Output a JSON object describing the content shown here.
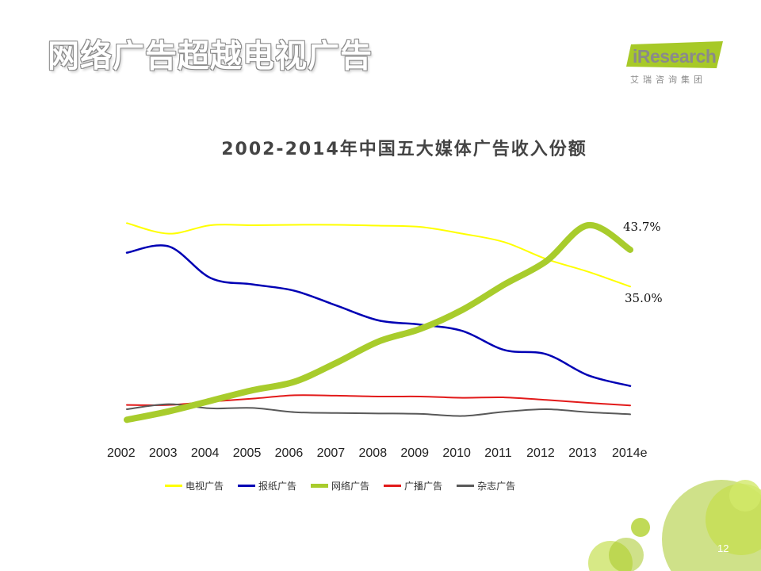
{
  "slide": {
    "title": "网络广告超越电视广告",
    "page_number": "12"
  },
  "logo": {
    "brand": "iResearch",
    "subtitle": "艾瑞咨询集团",
    "color": "#a7c928"
  },
  "chart_data": {
    "type": "line",
    "title": "2002-2014年中国五大媒体广告收入份额",
    "categories": [
      "2002",
      "2003",
      "2004",
      "2005",
      "2006",
      "2007",
      "2008",
      "2009",
      "2010",
      "2011",
      "2012",
      "2013",
      "2014e"
    ],
    "ylabel": "",
    "xlabel": "",
    "ylim": [
      0,
      60
    ],
    "legend_position": "bottom",
    "grid": false,
    "annotations": [
      {
        "label": "43.7%",
        "series": "网络广告"
      },
      {
        "label": "35.0%",
        "series": "电视广告"
      }
    ],
    "series": [
      {
        "name": "电视广告",
        "color": "#ffff00",
        "values": [
          50.0,
          47.5,
          49.5,
          49.5,
          49.6,
          49.6,
          49.4,
          49.1,
          47.5,
          45.5,
          41.5,
          38.5,
          35.0
        ]
      },
      {
        "name": "报纸广告",
        "color": "#0000b4",
        "values": [
          43.0,
          44.5,
          37.0,
          35.5,
          34.0,
          30.5,
          27.0,
          26.0,
          24.5,
          20.0,
          19.0,
          14.0,
          11.5
        ]
      },
      {
        "name": "网络广告",
        "color": "#a8cc2c",
        "values": [
          3.5,
          5.5,
          8.0,
          10.5,
          12.5,
          17.0,
          22.0,
          25.0,
          29.5,
          35.5,
          41.0,
          49.5,
          43.7
        ]
      },
      {
        "name": "广播广告",
        "color": "#e21a1a",
        "values": [
          7.0,
          7.0,
          7.8,
          8.5,
          9.3,
          9.2,
          9.0,
          9.0,
          8.7,
          8.8,
          8.2,
          7.5,
          6.9
        ]
      },
      {
        "name": "杂志广告",
        "color": "#595959",
        "values": [
          6.0,
          7.2,
          6.2,
          6.3,
          5.3,
          5.1,
          5.0,
          4.9,
          4.4,
          5.4,
          6.0,
          5.3,
          4.8
        ]
      }
    ]
  }
}
